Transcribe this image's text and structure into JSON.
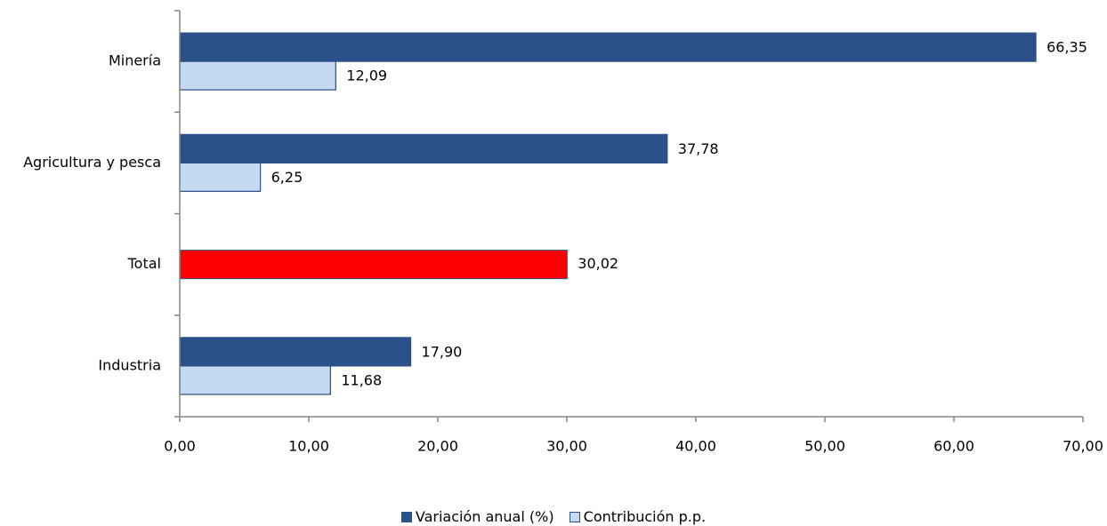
{
  "chart_data": {
    "type": "bar",
    "orientation": "horizontal",
    "categories": [
      "Minería",
      "Agricultura y pesca",
      "Total",
      "Industria"
    ],
    "series": [
      {
        "name": "Variación anual (%)",
        "color": "#2a5189",
        "values": [
          66.35,
          37.78,
          null,
          17.9
        ],
        "labels": [
          "66,35",
          "37,78",
          "",
          "17,90"
        ]
      },
      {
        "name": "Contribución p.p.",
        "color": "#c5d9f1",
        "values": [
          12.09,
          6.25,
          null,
          11.68
        ],
        "labels": [
          "12,09",
          "6,25",
          "",
          "11,68"
        ]
      }
    ],
    "highlight": {
      "category": "Total",
      "value": 30.02,
      "label": "30,02",
      "color": "#ff0000"
    },
    "xlim": [
      0,
      70
    ],
    "xticks": [
      0,
      10,
      20,
      30,
      40,
      50,
      60,
      70
    ],
    "xtick_labels": [
      "0,00",
      "10,00",
      "20,00",
      "30,00",
      "40,00",
      "50,00",
      "60,00",
      "70,00"
    ],
    "grid": false,
    "legend": "bottom"
  }
}
